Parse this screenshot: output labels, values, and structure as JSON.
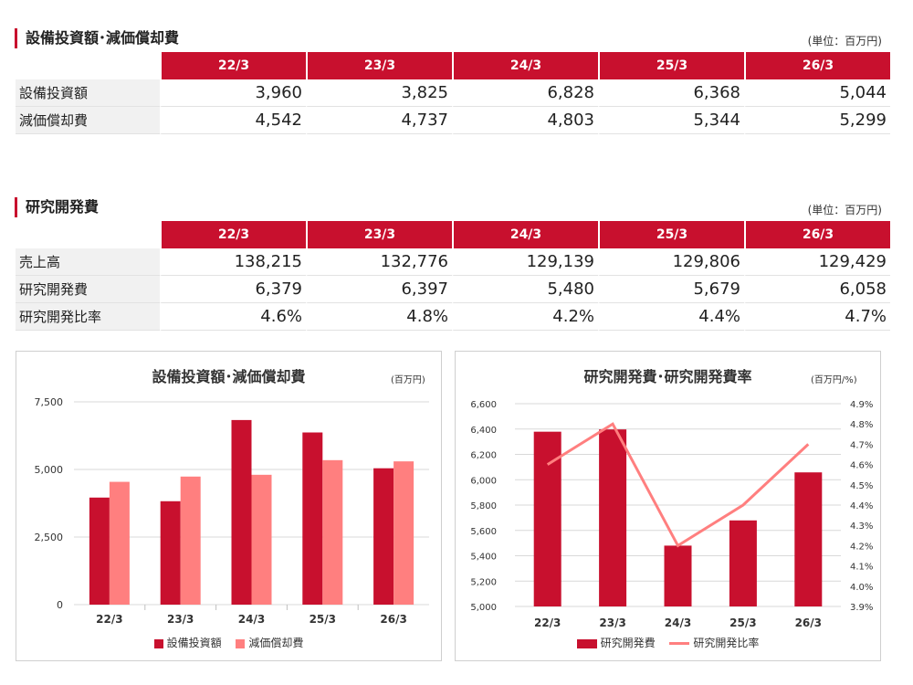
{
  "colors": {
    "accent": "#c8102e",
    "light": "#ff7f7f"
  },
  "capex": {
    "title": "設備投資額･減価償却費",
    "unit": "(単位：百万円)",
    "headers": [
      "22/3",
      "23/3",
      "24/3",
      "25/3",
      "26/3"
    ],
    "rows": [
      {
        "label": "設備投資額",
        "values": [
          "3,960",
          "3,825",
          "6,828",
          "6,368",
          "5,044"
        ]
      },
      {
        "label": "減価償却費",
        "values": [
          "4,542",
          "4,737",
          "4,803",
          "5,344",
          "5,299"
        ]
      }
    ]
  },
  "rd": {
    "title": "研究開発費",
    "unit": "(単位：百万円)",
    "headers": [
      "22/3",
      "23/3",
      "24/3",
      "25/3",
      "26/3"
    ],
    "rows": [
      {
        "label": "売上高",
        "values": [
          "138,215",
          "132,776",
          "129,139",
          "129,806",
          "129,429"
        ]
      },
      {
        "label": "研究開発費",
        "values": [
          "6,379",
          "6,397",
          "5,480",
          "5,679",
          "6,058"
        ]
      },
      {
        "label": "研究開発比率",
        "values": [
          "4.6%",
          "4.8%",
          "4.2%",
          "4.4%",
          "4.7%"
        ]
      }
    ]
  },
  "chart1_labels": {
    "title": "設備投資額･減価償却費",
    "unit": "(百万円)",
    "legend": [
      "設備投資額",
      "減価償却費"
    ]
  },
  "chart2_labels": {
    "title": "研究開発費･研究開発費率",
    "unit": "(百万円/%)",
    "legend": [
      "研究開発費",
      "研究開発比率"
    ]
  },
  "chart_data": [
    {
      "type": "bar",
      "title": "設備投資額･減価償却費",
      "categories": [
        "22/3",
        "23/3",
        "24/3",
        "25/3",
        "26/3"
      ],
      "series": [
        {
          "name": "設備投資額",
          "values": [
            3960,
            3825,
            6828,
            6368,
            5044
          ],
          "color": "#c8102e"
        },
        {
          "name": "減価償却費",
          "values": [
            4542,
            4737,
            4803,
            5344,
            5299
          ],
          "color": "#ff7f7f"
        }
      ],
      "ylim": [
        0,
        7500
      ],
      "yticks": [
        "0",
        "2,500",
        "5,000",
        "7,500"
      ],
      "grid": true,
      "legend": "bottom"
    },
    {
      "type": "bar",
      "title": "研究開発費･研究開発費率",
      "categories": [
        "22/3",
        "23/3",
        "24/3",
        "25/3",
        "26/3"
      ],
      "series": [
        {
          "name": "研究開発費",
          "type": "bar",
          "values": [
            6379,
            6397,
            5480,
            5679,
            6058
          ],
          "color": "#c8102e"
        },
        {
          "name": "研究開発比率",
          "type": "line",
          "axis": "right",
          "values": [
            4.6,
            4.8,
            4.2,
            4.4,
            4.7
          ],
          "color": "#ff7f7f"
        }
      ],
      "ylim": [
        5000,
        6600
      ],
      "yticks": [
        "5,000",
        "5,200",
        "5,400",
        "5,600",
        "5,800",
        "6,000",
        "6,200",
        "6,400",
        "6,600"
      ],
      "y2lim": [
        3.9,
        4.9
      ],
      "y2ticks": [
        "3.9%",
        "4.0%",
        "4.1%",
        "4.2%",
        "4.3%",
        "4.4%",
        "4.5%",
        "4.6%",
        "4.7%",
        "4.8%",
        "4.9%"
      ],
      "grid": true,
      "legend": "bottom"
    }
  ]
}
